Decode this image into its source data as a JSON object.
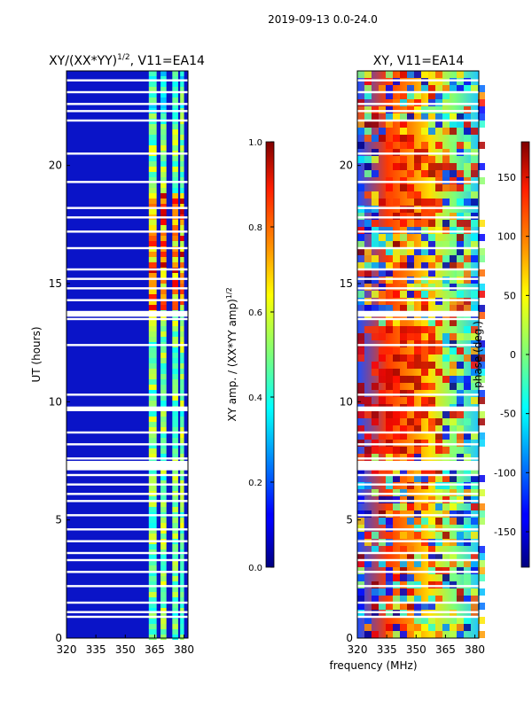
{
  "suptitle": "2019-09-13 0.0-24.0",
  "xlabel_shared": "frequency (MHz)",
  "colors": {
    "gap": "#ffffff",
    "frame": "#000000"
  },
  "chart_data": [
    {
      "type": "heatmap",
      "title": "XY/(XX*YY)",
      "title_exp": "1/2",
      "title_suffix": ", V11=EA14",
      "ylabel": "UT (hours)",
      "xlim": [
        320,
        382
      ],
      "ylim": [
        0,
        24
      ],
      "xticks": [
        320,
        335,
        350,
        365,
        380
      ],
      "yticks": [
        0,
        5,
        10,
        15,
        20
      ],
      "colormap": "jet",
      "colorbar": {
        "label": "XY amp. / (XX*YY amp)",
        "label_exp": "1/2",
        "range": [
          0.0,
          1.0
        ],
        "ticks": [
          "0.0",
          "0.2",
          "0.4",
          "0.6",
          "0.8",
          "1.0"
        ]
      },
      "description_bands_MHz": [
        [
          362,
          366
        ],
        [
          368,
          371
        ],
        [
          374,
          377
        ],
        [
          378,
          380
        ]
      ],
      "gaps_UT_hours": [
        0.9,
        1.1,
        1.5,
        2.2,
        2.8,
        3.3,
        3.6,
        4.1,
        4.6,
        5.2,
        5.8,
        6.1,
        6.5,
        6.9,
        7.3,
        7.6,
        8.2,
        8.7,
        9.7,
        10.3,
        12.4,
        13.5,
        13.8,
        14.3,
        14.8,
        15.2,
        15.6,
        16.5,
        17.2,
        17.8,
        18.2,
        19.3,
        20.5,
        21.9,
        22.3,
        22.6,
        23.1,
        23.6
      ]
    },
    {
      "type": "heatmap",
      "title": "XY, V11=EA14",
      "ylabel": "",
      "xlim": [
        320,
        382
      ],
      "ylim": [
        0,
        24
      ],
      "xticks": [
        320,
        335,
        350,
        365,
        380
      ],
      "yticks": [
        0,
        5,
        10,
        15,
        20
      ],
      "colormap": "jet",
      "colorbar": {
        "label": "phase (deg.)",
        "range": [
          -180,
          180
        ],
        "ticks": [
          "-150",
          "-100",
          "-50",
          "0",
          "50",
          "100",
          "150"
        ]
      },
      "gaps_UT_hours": [
        0.9,
        1.1,
        1.5,
        2.2,
        2.8,
        3.3,
        3.6,
        4.1,
        4.6,
        5.2,
        5.8,
        6.1,
        6.5,
        6.9,
        7.3,
        7.6,
        8.2,
        8.7,
        9.7,
        10.3,
        12.4,
        13.5,
        13.8,
        14.3,
        14.8,
        15.2,
        15.6,
        16.5,
        17.2,
        17.8,
        18.2,
        19.3,
        20.5,
        21.9,
        22.3,
        22.6,
        23.1,
        23.6
      ]
    }
  ]
}
